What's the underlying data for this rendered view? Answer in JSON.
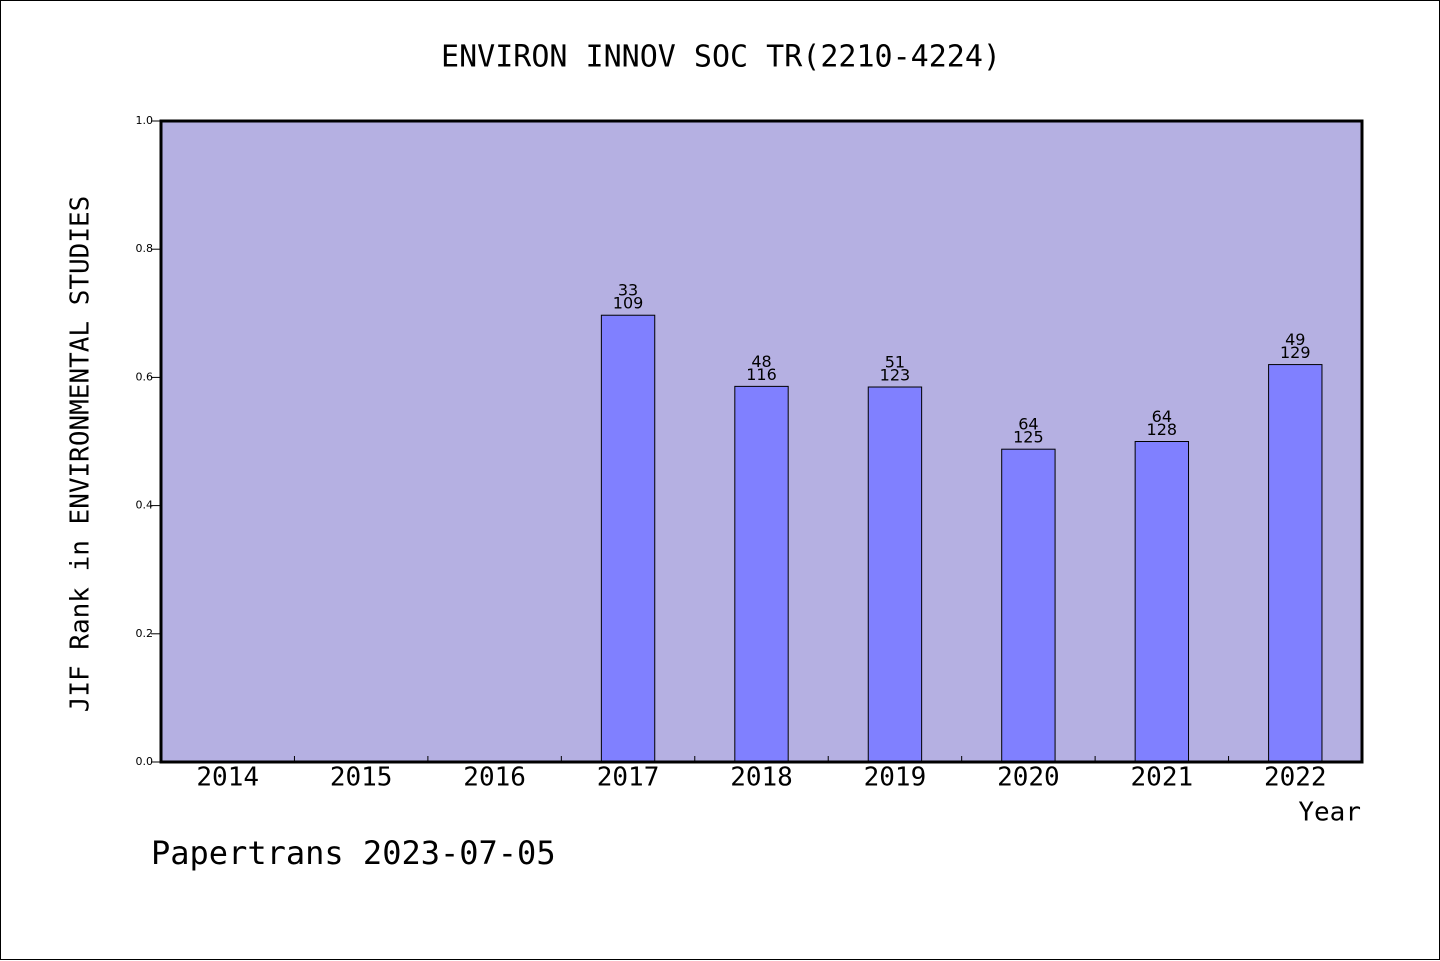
{
  "chart_data": {
    "type": "bar",
    "title": "ENVIRON INNOV SOC TR(2210-4224)",
    "xlabel": "Year",
    "ylabel": "JIF Rank in ENVIRONMENTAL STUDIES",
    "ylim": [
      0,
      1.0
    ],
    "yticks": [
      "0.0",
      "0.2",
      "0.4",
      "0.6",
      "0.8",
      "1.0"
    ],
    "categories": [
      "2014",
      "2015",
      "2016",
      "2017",
      "2018",
      "2019",
      "2020",
      "2021",
      "2022"
    ],
    "values": [
      null,
      null,
      null,
      0.697,
      0.586,
      0.585,
      0.488,
      0.5,
      0.62
    ],
    "rank_labels": [
      null,
      null,
      null,
      "33",
      "48",
      "51",
      "64",
      "64",
      "49"
    ],
    "total_labels": [
      null,
      null,
      null,
      "109",
      "116",
      "123",
      "125",
      "128",
      "129"
    ],
    "grid": false,
    "legend": "none",
    "colors": {
      "plot_background": "#b5b0e2",
      "bar_fill": "#8080ff",
      "bar_stroke": "#000000",
      "axis": "#000000",
      "text": "#000000"
    }
  },
  "footer": {
    "watermark": "Papertrans 2023-07-05"
  }
}
